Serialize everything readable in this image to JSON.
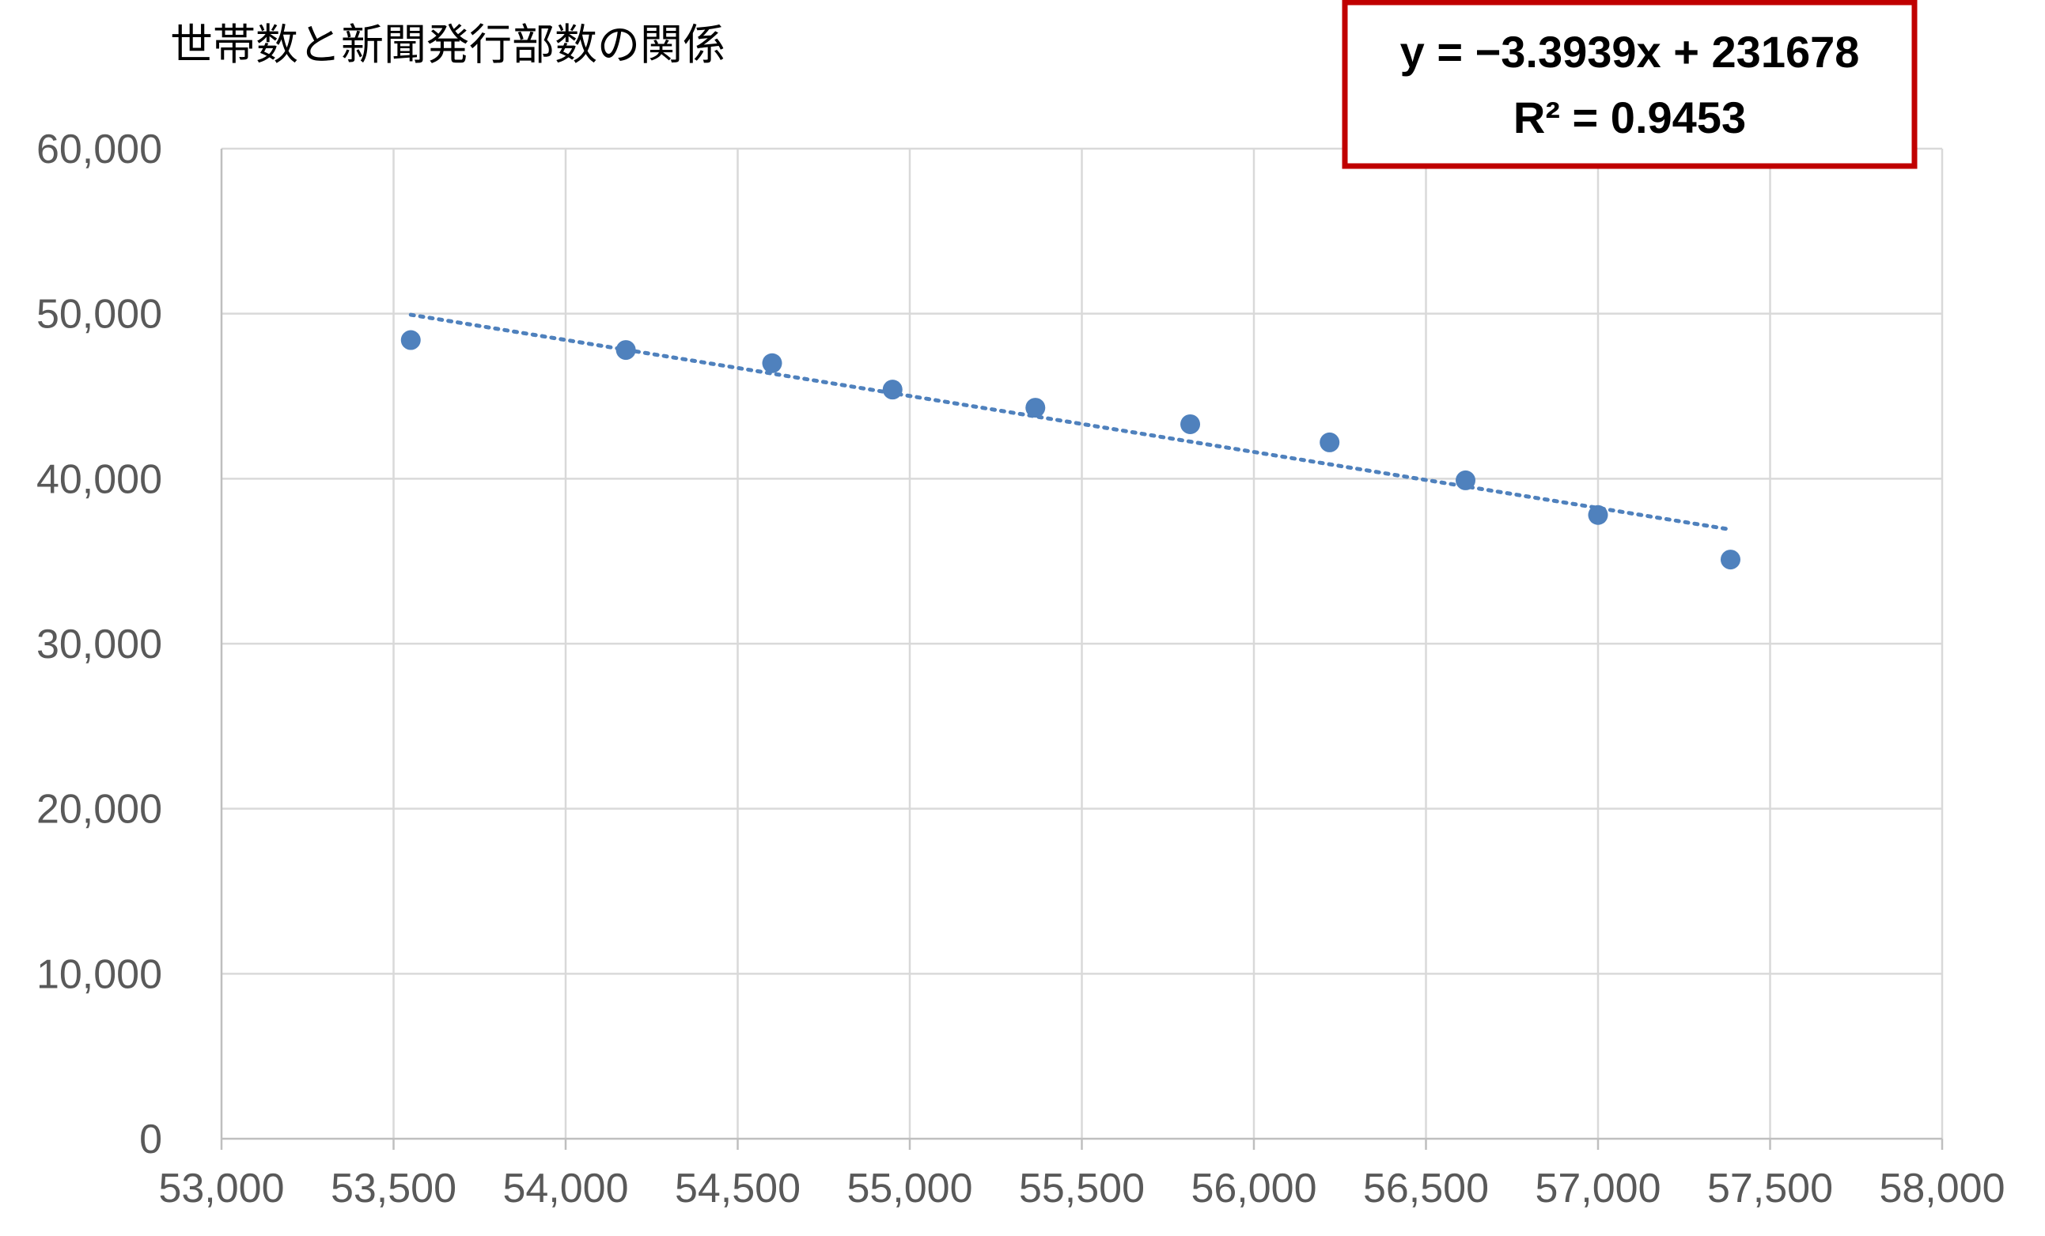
{
  "chart_data": {
    "type": "scatter",
    "title": "世帯数と新聞発行部数の関係",
    "xlabel": "",
    "ylabel": "",
    "xlim": [
      53000,
      58000
    ],
    "ylim": [
      0,
      60000
    ],
    "xticks": [
      53000,
      53500,
      54000,
      54500,
      55000,
      55500,
      56000,
      56500,
      57000,
      57500,
      58000
    ],
    "yticks": [
      0,
      10000,
      20000,
      30000,
      40000,
      50000,
      60000
    ],
    "xtick_labels": [
      "53,000",
      "53,500",
      "54,000",
      "54,500",
      "55,000",
      "55,500",
      "56,000",
      "56,500",
      "57,000",
      "57,500",
      "58,000"
    ],
    "ytick_labels": [
      "0",
      "10,000",
      "20,000",
      "30,000",
      "40,000",
      "50,000",
      "60,000"
    ],
    "grid": true,
    "series": [
      {
        "color": "#4F81BD",
        "points": [
          {
            "x": 53550,
            "y": 48400
          },
          {
            "x": 54175,
            "y": 47800
          },
          {
            "x": 54600,
            "y": 47000
          },
          {
            "x": 54950,
            "y": 45400
          },
          {
            "x": 55365,
            "y": 44300
          },
          {
            "x": 55815,
            "y": 43300
          },
          {
            "x": 56220,
            "y": 42200
          },
          {
            "x": 56615,
            "y": 39900
          },
          {
            "x": 57000,
            "y": 37800
          },
          {
            "x": 57385,
            "y": 35100
          }
        ]
      }
    ],
    "trendline": {
      "type": "linear",
      "slope": -3.3939,
      "intercept": 231678,
      "x_range": [
        53550,
        57385
      ],
      "color": "#4F81BD",
      "style": "dotted",
      "equation_text": "y = −3.3939x + 231678",
      "r2_text": "R² = 0.9453",
      "box_border_color": "#C00000"
    }
  }
}
